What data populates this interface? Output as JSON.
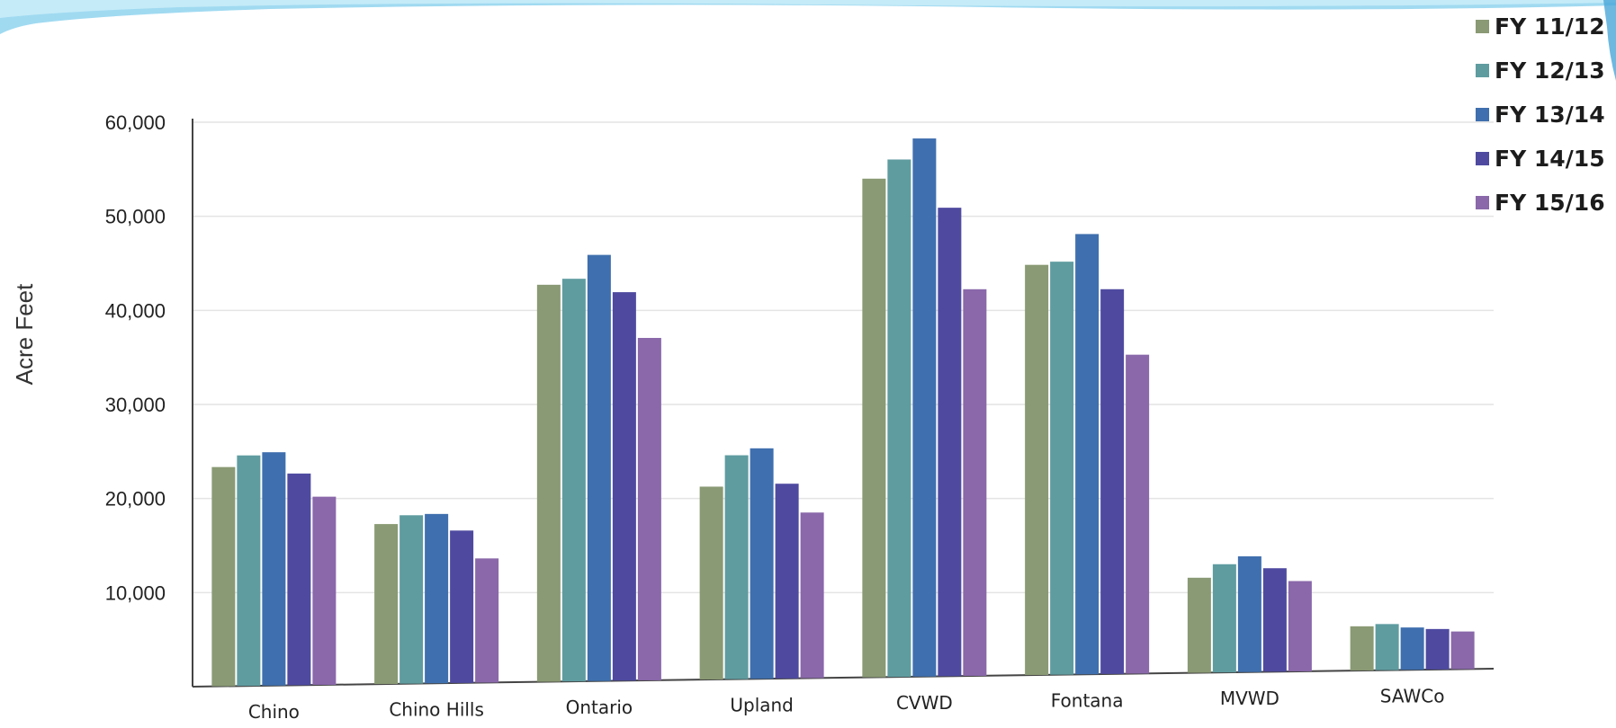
{
  "chart_data": {
    "type": "bar",
    "title": "",
    "xlabel": "",
    "ylabel": "Acre Feet",
    "ylim": [
      0,
      60000
    ],
    "y_ticks": [
      10000,
      20000,
      30000,
      40000,
      50000,
      60000
    ],
    "y_tick_labels": [
      "10,000",
      "20,000",
      "30,000",
      "40,000",
      "50,000",
      "60,000"
    ],
    "grid": true,
    "legend_position": "top-right",
    "categories": [
      "Chino",
      "Chino Hills",
      "Ontario",
      "Upland",
      "CVWD",
      "Fontana",
      "MVWD",
      "SAWCo"
    ],
    "series": [
      {
        "name": "FY 11/12",
        "color": "#8a9a74",
        "values": [
          23300,
          17000,
          42200,
          20500,
          53000,
          43600,
          10100,
          4700
        ]
      },
      {
        "name": "FY 12/13",
        "color": "#5f9ca0",
        "values": [
          24500,
          17900,
          42800,
          23800,
          55000,
          43900,
          11500,
          4900
        ]
      },
      {
        "name": "FY 13/14",
        "color": "#3f6fae",
        "values": [
          24800,
          18000,
          45300,
          24500,
          57200,
          46800,
          12300,
          4500
        ]
      },
      {
        "name": "FY 14/15",
        "color": "#4f4aa0",
        "values": [
          22500,
          16200,
          41300,
          20700,
          49800,
          40900,
          11000,
          4300
        ]
      },
      {
        "name": "FY 15/16",
        "color": "#8a68aa",
        "values": [
          20000,
          13200,
          36400,
          17600,
          41100,
          33900,
          9600,
          4000
        ]
      }
    ]
  }
}
